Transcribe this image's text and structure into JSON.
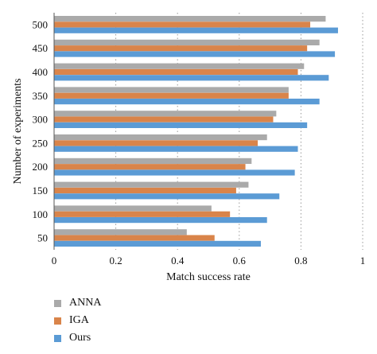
{
  "chart_data": {
    "type": "bar",
    "orientation": "horizontal",
    "xlabel": "Match success rate",
    "ylabel": "Number of experiments",
    "xlim": [
      0,
      1
    ],
    "x_ticks": [
      "0",
      "0.2",
      "0.4",
      "0.6",
      "0.8",
      "1"
    ],
    "categories": [
      "500",
      "450",
      "400",
      "350",
      "300",
      "250",
      "200",
      "150",
      "100",
      "50"
    ],
    "series": [
      {
        "name": "ANNA",
        "color": "#aaaaaa",
        "values": [
          0.88,
          0.86,
          0.81,
          0.76,
          0.72,
          0.69,
          0.64,
          0.63,
          0.51,
          0.43
        ]
      },
      {
        "name": "IGA",
        "color": "#d9844a",
        "values": [
          0.83,
          0.82,
          0.79,
          0.76,
          0.71,
          0.66,
          0.62,
          0.59,
          0.57,
          0.52
        ]
      },
      {
        "name": "Ours",
        "color": "#5b9bd5",
        "values": [
          0.92,
          0.91,
          0.89,
          0.86,
          0.82,
          0.79,
          0.78,
          0.73,
          0.69,
          0.67
        ]
      }
    ],
    "grid": "vertical-dotted",
    "legend_position": "bottom-left"
  }
}
